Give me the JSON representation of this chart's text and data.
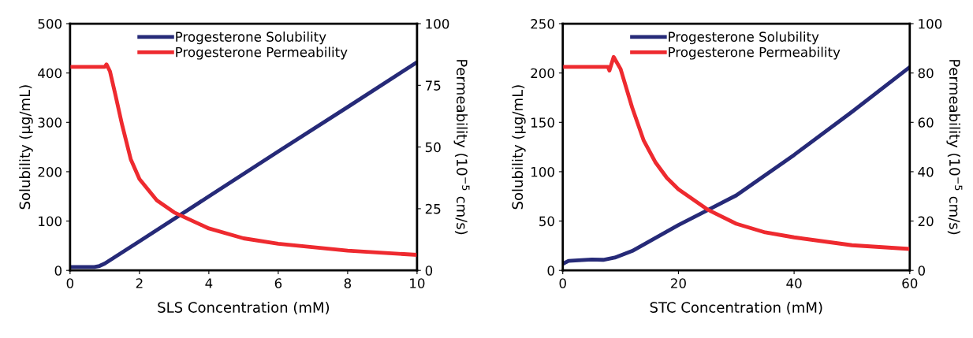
{
  "chart_data": [
    {
      "type": "line",
      "xlabel": "SLS Concentration (mM)",
      "ylabel": "Solubility (µg/mL)",
      "y2label": "Permeability (10$^{−5}$ cm/s)",
      "xlim": [
        0,
        10
      ],
      "xticks": [
        0,
        2,
        4,
        6,
        8,
        10
      ],
      "ylim": [
        0,
        500
      ],
      "yticks": [
        0,
        100,
        200,
        300,
        400,
        500
      ],
      "y2lim": [
        0,
        100
      ],
      "y2ticks": [
        0,
        25,
        50,
        75,
        100
      ],
      "legend": "top",
      "grid": false,
      "marker": "none",
      "line_style": "solid",
      "series": [
        {
          "name": "Progesterone Solubility",
          "color": "#262a78",
          "x": [
            0,
            0.7,
            0.85,
            1,
            2,
            4,
            6,
            8,
            10
          ],
          "values": [
            7,
            7,
            9,
            14,
            59,
            150,
            241,
            331,
            422
          ]
        },
        {
          "name": "Progesterone Permeability",
          "color": "#ee2a2f",
          "axis": "y2",
          "x": [
            0,
            1.0,
            1.05,
            1.15,
            1.3,
            1.5,
            1.75,
            2,
            2.5,
            3,
            4,
            5,
            6,
            8,
            10
          ],
          "values": [
            82.5,
            82.5,
            83.5,
            80.7,
            71.6,
            59,
            45,
            37,
            28.4,
            23.5,
            17,
            13,
            10.8,
            8,
            6.3
          ]
        }
      ]
    },
    {
      "type": "line",
      "xlabel": "STC Concentration (mM)",
      "ylabel": "Solubility (µg/mL)",
      "y2label": "Permeability (10$^{−5}$ cm/s)",
      "xlim": [
        0,
        60
      ],
      "xticks": [
        0,
        20,
        40,
        60
      ],
      "ylim": [
        0,
        250
      ],
      "yticks": [
        0,
        50,
        100,
        150,
        200,
        250
      ],
      "y2lim": [
        0,
        100
      ],
      "y2ticks": [
        0,
        20,
        40,
        60,
        80,
        100
      ],
      "legend": "top",
      "grid": false,
      "marker": "none",
      "line_style": "solid",
      "series": [
        {
          "name": "Progesterone Solubility",
          "color": "#262a78",
          "x": [
            0,
            1,
            5,
            7,
            9,
            12,
            20,
            25,
            30,
            40,
            50,
            60
          ],
          "values": [
            6.7,
            9.6,
            11,
            10.7,
            13,
            19.7,
            45.9,
            61,
            76,
            117,
            160.6,
            206
          ]
        },
        {
          "name": "Progesterone Permeability",
          "color": "#ee2a2f",
          "axis": "y2",
          "x": [
            0,
            7.8,
            8.07,
            8.8,
            10,
            12,
            14,
            16,
            18,
            20,
            25,
            30,
            35,
            40,
            50,
            60
          ],
          "values": [
            82.5,
            82.5,
            81,
            86.5,
            81.6,
            66,
            52.6,
            43.9,
            37.5,
            32.9,
            24.7,
            18.9,
            15.4,
            13.4,
            10.2,
            8.7
          ]
        }
      ]
    }
  ]
}
